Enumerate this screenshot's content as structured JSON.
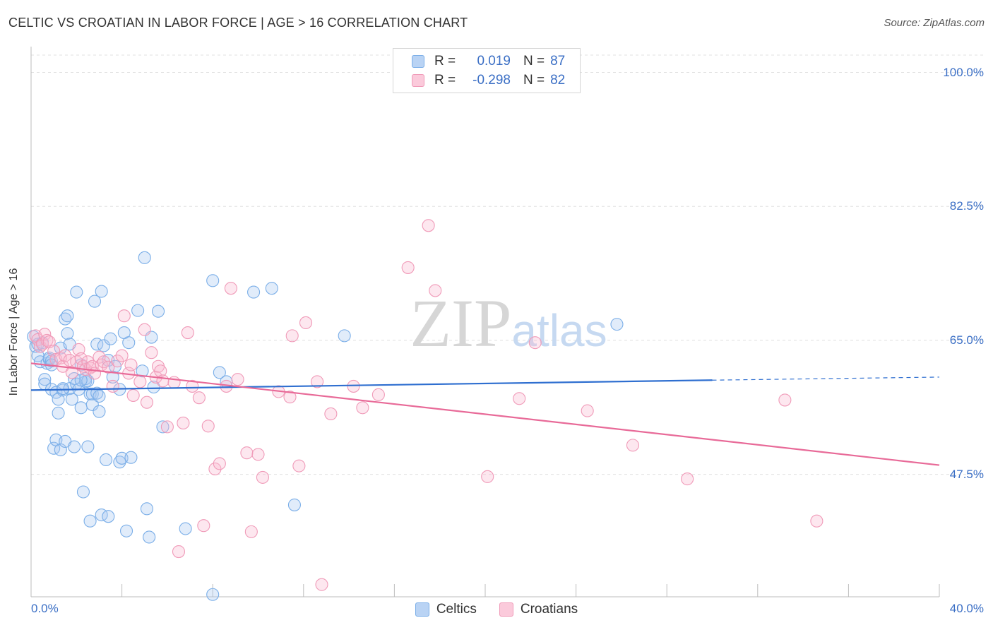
{
  "chart_data": {
    "type": "scatter",
    "title": "CELTIC VS CROATIAN IN LABOR FORCE | AGE > 16 CORRELATION CHART",
    "source": "Source: ZipAtlas.com",
    "xlabel": "",
    "ylabel": "In Labor Force | Age > 16",
    "xlim": [
      0,
      40
    ],
    "ylim": [
      31.5,
      103
    ],
    "x_tick_labels": [
      "0.0%",
      "40.0%"
    ],
    "y_ticks": [
      100,
      82.5,
      65,
      47.5
    ],
    "y_tick_labels": [
      "100.0%",
      "82.5%",
      "65.0%",
      "47.5%"
    ],
    "grid": "horizontal dashed",
    "watermark": "ZIPatlas",
    "legend_position": "top-center",
    "legend": [
      {
        "name": "Celtics",
        "r_label": "R =",
        "r_value": "0.019",
        "n_label": "N =",
        "n_value": "87",
        "color": "#7aaee8"
      },
      {
        "name": "Croatians",
        "r_label": "R =",
        "r_value": "-0.298",
        "n_label": "N =",
        "n_value": "82",
        "color": "#f09ab8"
      }
    ],
    "series": [
      {
        "name": "Celtics",
        "color": "#7aaee8",
        "trend": {
          "x": [
            0,
            30
          ],
          "y": [
            58.5,
            59.8
          ],
          "dashed_to": [
            40,
            60.2
          ],
          "color": "#2f6fd0"
        },
        "points": [
          [
            0.1,
            65.5
          ],
          [
            0.2,
            64.2
          ],
          [
            0.3,
            63.0
          ],
          [
            0.3,
            64.5
          ],
          [
            0.4,
            62.2
          ],
          [
            0.5,
            64.7
          ],
          [
            0.6,
            59.9
          ],
          [
            0.6,
            59.3
          ],
          [
            0.7,
            62.0
          ],
          [
            0.8,
            62.5
          ],
          [
            0.8,
            62.7
          ],
          [
            0.9,
            58.6
          ],
          [
            0.9,
            62.3
          ],
          [
            1.0,
            50.9
          ],
          [
            1.1,
            52.0
          ],
          [
            1.1,
            58.2
          ],
          [
            1.2,
            57.3
          ],
          [
            1.2,
            55.5
          ],
          [
            1.3,
            50.7
          ],
          [
            1.3,
            64.0
          ],
          [
            1.4,
            58.5
          ],
          [
            1.5,
            51.8
          ],
          [
            1.5,
            67.8
          ],
          [
            1.6,
            68.2
          ],
          [
            1.6,
            65.9
          ],
          [
            1.7,
            58.7
          ],
          [
            1.8,
            57.3
          ],
          [
            1.9,
            60.0
          ],
          [
            1.9,
            51.1
          ],
          [
            2.0,
            59.3
          ],
          [
            2.0,
            71.3
          ],
          [
            2.1,
            58.6
          ],
          [
            2.2,
            56.2
          ],
          [
            2.2,
            61.8
          ],
          [
            2.3,
            45.2
          ],
          [
            2.4,
            59.6
          ],
          [
            2.4,
            60.0
          ],
          [
            2.5,
            59.7
          ],
          [
            2.5,
            51.1
          ],
          [
            2.6,
            41.4
          ],
          [
            2.6,
            58.0
          ],
          [
            2.7,
            56.6
          ],
          [
            2.7,
            58.0
          ],
          [
            2.8,
            70.1
          ],
          [
            2.9,
            58.1
          ],
          [
            2.9,
            64.5
          ],
          [
            3.0,
            57.7
          ],
          [
            3.0,
            55.7
          ],
          [
            3.1,
            71.4
          ],
          [
            3.1,
            42.2
          ],
          [
            3.2,
            64.3
          ],
          [
            3.3,
            49.4
          ],
          [
            3.4,
            62.4
          ],
          [
            3.4,
            42.0
          ],
          [
            3.6,
            60.2
          ],
          [
            3.9,
            49.1
          ],
          [
            3.9,
            58.6
          ],
          [
            4.0,
            49.6
          ],
          [
            4.1,
            66.0
          ],
          [
            4.2,
            40.1
          ],
          [
            4.3,
            64.7
          ],
          [
            4.4,
            49.7
          ],
          [
            4.7,
            68.9
          ],
          [
            4.9,
            61.0
          ],
          [
            5.0,
            75.8
          ],
          [
            5.1,
            43.0
          ],
          [
            5.2,
            39.3
          ],
          [
            5.3,
            65.4
          ],
          [
            5.4,
            58.9
          ],
          [
            5.6,
            68.8
          ],
          [
            5.8,
            53.7
          ],
          [
            6.8,
            40.4
          ],
          [
            8.0,
            72.8
          ],
          [
            8.0,
            31.8
          ],
          [
            8.3,
            60.8
          ],
          [
            8.6,
            59.6
          ],
          [
            9.8,
            71.3
          ],
          [
            10.6,
            71.8
          ],
          [
            11.6,
            43.5
          ],
          [
            13.8,
            65.6
          ],
          [
            25.8,
            67.1
          ],
          [
            3.5,
            65.2
          ],
          [
            1.7,
            64.5
          ],
          [
            2.2,
            59.8
          ],
          [
            0.9,
            61.8
          ],
          [
            1.4,
            58.7
          ],
          [
            3.7,
            61.6
          ]
        ]
      },
      {
        "name": "Croatians",
        "color": "#f09ab8",
        "trend": {
          "x": [
            0,
            40
          ],
          "y": [
            62.0,
            48.7
          ],
          "color": "#e86a98"
        },
        "points": [
          [
            0.2,
            65.6
          ],
          [
            0.3,
            65.1
          ],
          [
            0.4,
            64.2
          ],
          [
            0.5,
            64.5
          ],
          [
            0.6,
            65.8
          ],
          [
            0.7,
            65.0
          ],
          [
            0.8,
            64.8
          ],
          [
            1.0,
            63.6
          ],
          [
            1.1,
            62.5
          ],
          [
            1.3,
            62.7
          ],
          [
            1.4,
            61.6
          ],
          [
            1.5,
            63.0
          ],
          [
            1.7,
            62.4
          ],
          [
            1.8,
            60.8
          ],
          [
            2.0,
            62.2
          ],
          [
            2.1,
            63.8
          ],
          [
            2.2,
            62.6
          ],
          [
            2.3,
            61.6
          ],
          [
            2.4,
            61.2
          ],
          [
            2.5,
            62.2
          ],
          [
            2.6,
            61.4
          ],
          [
            2.7,
            61.6
          ],
          [
            2.8,
            60.7
          ],
          [
            3.0,
            62.8
          ],
          [
            3.1,
            61.8
          ],
          [
            3.2,
            62.2
          ],
          [
            3.4,
            61.5
          ],
          [
            3.6,
            59.0
          ],
          [
            3.8,
            62.3
          ],
          [
            4.0,
            63.0
          ],
          [
            4.1,
            68.2
          ],
          [
            4.3,
            60.7
          ],
          [
            4.4,
            61.8
          ],
          [
            4.5,
            57.8
          ],
          [
            4.8,
            59.6
          ],
          [
            5.0,
            66.4
          ],
          [
            5.1,
            56.9
          ],
          [
            5.3,
            63.4
          ],
          [
            5.5,
            60.2
          ],
          [
            5.6,
            61.6
          ],
          [
            5.7,
            61.0
          ],
          [
            5.8,
            59.7
          ],
          [
            6.0,
            53.7
          ],
          [
            6.3,
            59.5
          ],
          [
            6.5,
            37.4
          ],
          [
            6.7,
            54.2
          ],
          [
            6.9,
            66.0
          ],
          [
            7.1,
            59.0
          ],
          [
            7.4,
            57.5
          ],
          [
            7.6,
            40.8
          ],
          [
            7.8,
            53.8
          ],
          [
            8.1,
            48.2
          ],
          [
            8.3,
            48.9
          ],
          [
            8.6,
            59.0
          ],
          [
            8.8,
            71.8
          ],
          [
            9.1,
            59.9
          ],
          [
            9.5,
            50.3
          ],
          [
            9.7,
            40.0
          ],
          [
            10.0,
            50.1
          ],
          [
            10.2,
            47.1
          ],
          [
            10.9,
            58.3
          ],
          [
            11.4,
            57.6
          ],
          [
            11.5,
            65.6
          ],
          [
            11.8,
            48.6
          ],
          [
            12.1,
            67.3
          ],
          [
            12.6,
            59.6
          ],
          [
            12.8,
            33.1
          ],
          [
            13.2,
            55.4
          ],
          [
            14.2,
            59.0
          ],
          [
            14.6,
            56.2
          ],
          [
            15.3,
            57.9
          ],
          [
            16.6,
            74.5
          ],
          [
            17.5,
            80.0
          ],
          [
            17.8,
            71.5
          ],
          [
            20.1,
            47.2
          ],
          [
            21.5,
            57.4
          ],
          [
            22.2,
            64.7
          ],
          [
            24.5,
            55.8
          ],
          [
            26.5,
            51.3
          ],
          [
            28.9,
            46.9
          ],
          [
            33.2,
            57.2
          ],
          [
            34.6,
            41.4
          ]
        ]
      }
    ]
  }
}
